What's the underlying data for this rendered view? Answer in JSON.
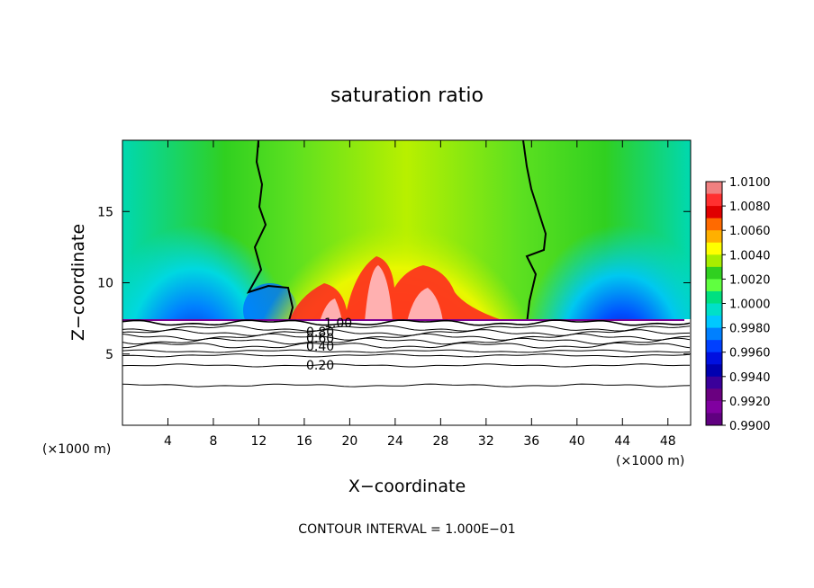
{
  "chart_data": {
    "type": "heatmap",
    "title": "saturation ratio",
    "xlabel": "X−coordinate",
    "ylabel": "Z−coordinate",
    "x_unit_left": "(×1000 m)",
    "x_unit_right": "(×1000 m)",
    "footer": "CONTOUR INTERVAL = 1.000E−01",
    "xlim": [
      0,
      50
    ],
    "ylim": [
      0,
      20
    ],
    "x_ticks": [
      4,
      8,
      12,
      16,
      20,
      24,
      28,
      32,
      36,
      40,
      44,
      48
    ],
    "x_tick_labels": [
      "4",
      "8",
      "12",
      "16",
      "20",
      "24",
      "28",
      "32",
      "36",
      "40",
      "44",
      "48"
    ],
    "y_ticks": [
      5,
      10,
      15
    ],
    "y_tick_labels": [
      "5",
      "10",
      "15"
    ],
    "colorbar": {
      "range": [
        0.99,
        1.01
      ],
      "labels": [
        "1.0100",
        "1.0080",
        "1.0060",
        "1.0040",
        "1.0020",
        "1.0000",
        "0.9980",
        "0.9960",
        "0.9940",
        "0.9920",
        "0.9900"
      ],
      "colors": [
        "#f08080",
        "#ff3030",
        "#e00000",
        "#ff6a00",
        "#ffb000",
        "#ffff00",
        "#a8ee00",
        "#30d020",
        "#60ff40",
        "#00e080",
        "#00e0c8",
        "#00c8ff",
        "#0080ff",
        "#0040ff",
        "#0010e0",
        "#0000b0",
        "#3a009a",
        "#6a0080",
        "#8000a0",
        "#600080"
      ]
    },
    "contour_labels": [
      {
        "text": "1.00",
        "value": 1.0
      },
      {
        "text": "0.80",
        "value": 0.8
      },
      {
        "text": "0.60",
        "value": 0.6
      },
      {
        "text": "0.40",
        "value": 0.4
      },
      {
        "text": "0.20",
        "value": 0.2
      }
    ],
    "contour_levels_z": [
      {
        "value": 1.0,
        "z": 7.2
      },
      {
        "value": 0.9,
        "z": 6.8
      },
      {
        "value": 0.8,
        "z": 6.5
      },
      {
        "value": 0.7,
        "z": 6.2
      },
      {
        "value": 0.6,
        "z": 5.9
      },
      {
        "value": 0.5,
        "z": 5.6
      },
      {
        "value": 0.4,
        "z": 5.2
      },
      {
        "value": 0.3,
        "z": 4.9
      },
      {
        "value": 0.2,
        "z": 4.2
      },
      {
        "value": 0.1,
        "z": 2.8
      }
    ],
    "saturation_boundary_x": [
      12,
      35
    ]
  }
}
